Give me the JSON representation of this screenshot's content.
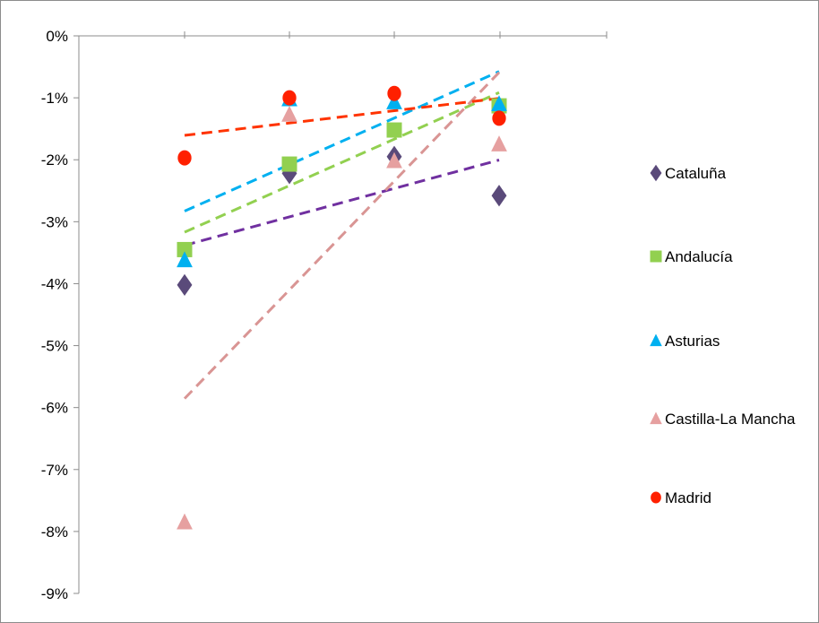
{
  "chart_data": {
    "type": "scatter",
    "x": [
      1,
      2,
      3,
      4
    ],
    "ylim": [
      -9,
      0
    ],
    "yticks": [
      0,
      -1,
      -2,
      -3,
      -4,
      -5,
      -6,
      -7,
      -8,
      -9
    ],
    "ytick_labels": [
      "0%",
      "-1%",
      "-2%",
      "-3%",
      "-4%",
      "-5%",
      "-6%",
      "-7%",
      "-8%",
      "-9%"
    ],
    "grid": false,
    "legend_position": "right",
    "trendlines": "linear, dashed",
    "series": [
      {
        "name": "Cataluña",
        "marker": "diamond-icon",
        "color": "#5a4a7a",
        "trend_color": "#7030a0",
        "values": [
          -4.02,
          -2.22,
          -1.95,
          -2.58
        ]
      },
      {
        "name": "Andalucía",
        "marker": "square-icon",
        "color": "#92d050",
        "trend_color": "#92d050",
        "values": [
          -3.45,
          -2.07,
          -1.52,
          -1.13
        ]
      },
      {
        "name": "Asturias",
        "marker": "triangle-icon",
        "color": "#00b0f0",
        "trend_color": "#00b0f0",
        "values": [
          -3.62,
          -1.02,
          -1.07,
          -1.1
        ]
      },
      {
        "name": "Castilla-La Mancha",
        "marker": "triangle-icon",
        "color": "#e6a0a0",
        "trend_color": "#d99594",
        "values": [
          -7.85,
          -1.27,
          -2.02,
          -1.75
        ]
      },
      {
        "name": "Madrid",
        "marker": "circle-icon",
        "color": "#ff2000",
        "trend_color": "#ff3300",
        "values": [
          -1.97,
          -1.0,
          -0.93,
          -1.33
        ]
      }
    ]
  }
}
